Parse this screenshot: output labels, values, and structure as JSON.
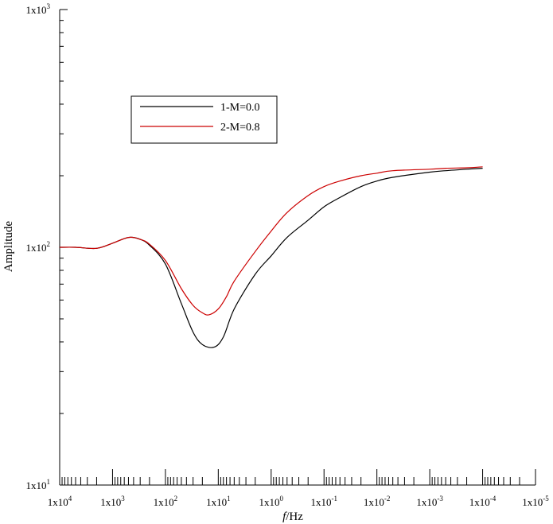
{
  "chart_data": {
    "type": "line",
    "title": "",
    "xlabel": "f/Hz",
    "xlabel_italic": "f",
    "xlabel_rest": "/Hz",
    "ylabel": "Amplitude",
    "x_scale": "log",
    "x_reversed": true,
    "y_scale": "log",
    "xlim": [
      10000,
      1e-05
    ],
    "ylim": [
      10,
      1000
    ],
    "x_tick_exponents": [
      "4",
      "3",
      "2",
      "1",
      "0",
      "-1",
      "-2",
      "-3",
      "-4",
      "-5"
    ],
    "x_tick_base": "1x10",
    "y_tick_exponents": [
      "1",
      "2",
      "3"
    ],
    "y_tick_base": "1x10",
    "grid": false,
    "legend_position": "top-left",
    "series": [
      {
        "name": "1-M=0.0",
        "color": "#000000",
        "x": [
          10000,
          5000,
          2000,
          1000,
          500,
          300,
          200,
          100,
          50,
          30,
          20,
          12,
          8,
          5,
          2,
          1,
          0.5,
          0.2,
          0.1,
          0.05,
          0.02,
          0.01,
          0.005,
          0.001,
          0.0005,
          0.0002,
          0.0001
        ],
        "y": [
          100,
          100,
          99,
          104,
          110,
          108,
          102,
          85,
          58,
          44,
          39,
          38,
          42,
          55,
          77,
          92,
          110,
          130,
          148,
          162,
          180,
          190,
          197,
          207,
          210,
          213,
          215
        ]
      },
      {
        "name": "2-M=0.8",
        "color": "#cc0000",
        "x": [
          10000,
          5000,
          2000,
          1000,
          500,
          300,
          200,
          100,
          50,
          30,
          20,
          15,
          10,
          7,
          5,
          2,
          1,
          0.5,
          0.2,
          0.1,
          0.05,
          0.02,
          0.01,
          0.005,
          0.001,
          0.0005,
          0.0002,
          0.0001
        ],
        "y": [
          100,
          100,
          99,
          104,
          110,
          108,
          103,
          88,
          67,
          57,
          53,
          52,
          55,
          62,
          72,
          96,
          117,
          140,
          165,
          180,
          190,
          200,
          205,
          210,
          213,
          215,
          216,
          218
        ]
      }
    ]
  }
}
